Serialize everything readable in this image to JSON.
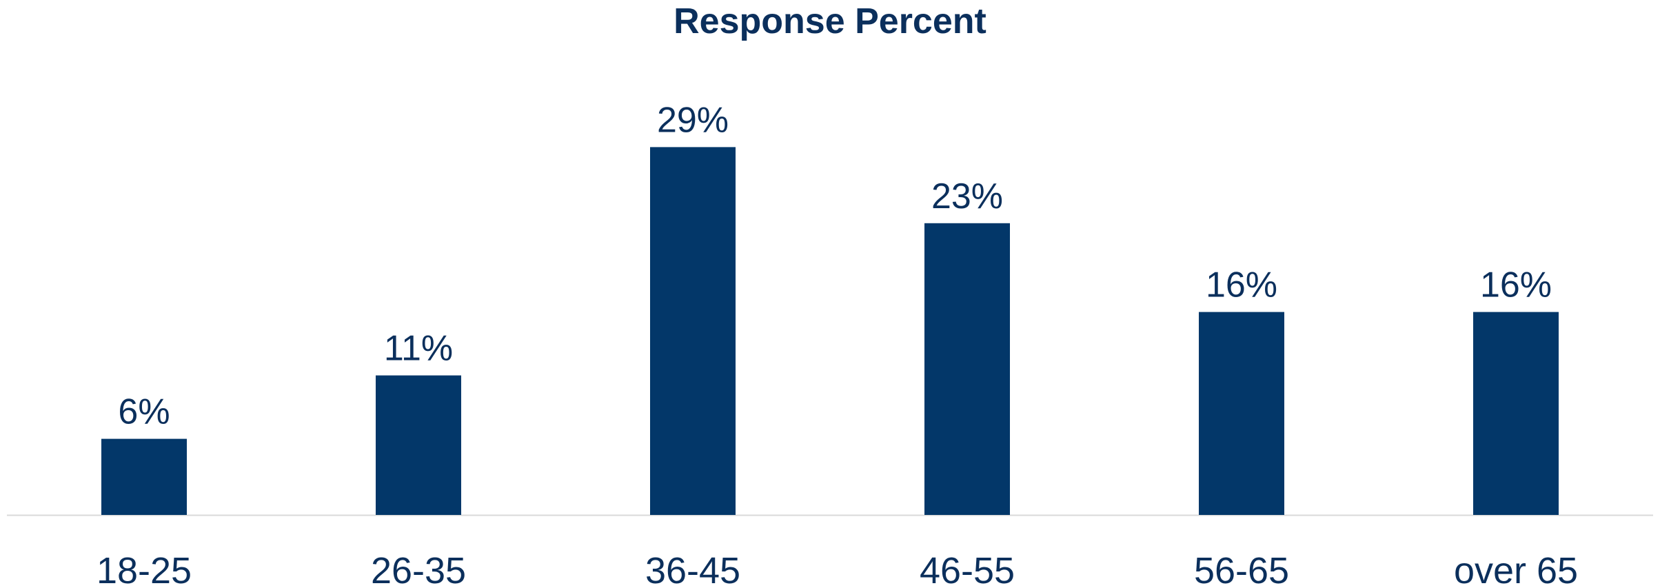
{
  "chart_data": {
    "type": "bar",
    "title": "Response Percent",
    "xlabel": "",
    "ylabel": "",
    "categories": [
      "18-25",
      "26-35",
      "36-45",
      "46-55",
      "56-65",
      "over 65"
    ],
    "values": [
      6,
      11,
      29,
      23,
      16,
      16
    ],
    "data_labels": [
      "6%",
      "11%",
      "29%",
      "23%",
      "16%",
      "16%"
    ],
    "ylim": [
      0,
      36
    ],
    "grid": false,
    "legend": "none",
    "colors": {
      "bar": "#033769",
      "text": "#0b2f5c",
      "axis": "#d9d9d9"
    }
  }
}
